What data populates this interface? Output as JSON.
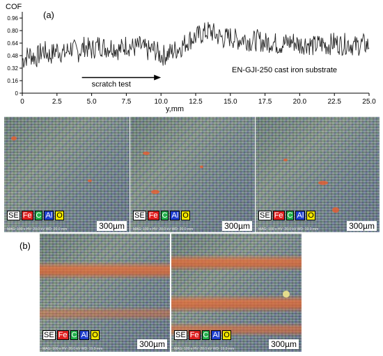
{
  "figure": {
    "panel_a_label": "(a)",
    "panel_b_label": "(b)"
  },
  "chart_data": {
    "type": "line",
    "ylabel": "COF",
    "xlabel": "y,mm",
    "xlim": [
      0,
      25
    ],
    "ylim": [
      0,
      1.04
    ],
    "x_ticks": [
      "0",
      "2.5",
      "5.0",
      "7.5",
      "10.0",
      "12.5",
      "15.0",
      "17.5",
      "20.0",
      "22.5",
      "25.0"
    ],
    "y_ticks": [
      "0",
      "0.16",
      "0.32",
      "0.48",
      "0.64",
      "0.80",
      "0.96"
    ],
    "y_tick_values": [
      0,
      0.16,
      0.32,
      0.48,
      0.64,
      0.8,
      0.96
    ],
    "annotations": {
      "arrow_text": "scratch test",
      "arrow_from_x": 4.3,
      "arrow_to_x": 10.0,
      "arrow_y": 0.2,
      "sample_text": "EN-GJI-250 cast iron substrate"
    },
    "series": [
      {
        "x": [
          0,
          0.5,
          1,
          1.5,
          2,
          2.5,
          3,
          3.5,
          4,
          4.5,
          5,
          5.5,
          6,
          6.5,
          7,
          7.5,
          8,
          8.5,
          9,
          9.5,
          10,
          10.5,
          11,
          11.5,
          12,
          12.5,
          13,
          13.5,
          14,
          14.5,
          15,
          15.5,
          16,
          16.5,
          17,
          17.5,
          18,
          18.5,
          19,
          19.5,
          20,
          20.5,
          21,
          21.5,
          22,
          22.5,
          23,
          23.5,
          24,
          24.5,
          25
        ],
        "y": [
          0.42,
          0.5,
          0.45,
          0.55,
          0.48,
          0.56,
          0.5,
          0.58,
          0.52,
          0.6,
          0.55,
          0.62,
          0.58,
          0.6,
          0.55,
          0.62,
          0.58,
          0.6,
          0.54,
          0.56,
          0.48,
          0.5,
          0.55,
          0.6,
          0.68,
          0.72,
          0.76,
          0.8,
          0.74,
          0.7,
          0.72,
          0.68,
          0.7,
          0.66,
          0.68,
          0.64,
          0.66,
          0.62,
          0.64,
          0.66,
          0.62,
          0.64,
          0.6,
          0.63,
          0.61,
          0.65,
          0.62,
          0.64,
          0.6,
          0.63,
          0.61
        ]
      }
    ]
  },
  "panels": [
    {
      "elements": [
        "SE",
        "Fe",
        "C",
        "Al",
        "O"
      ],
      "meta": "MAG: 100 x  HV: 20.0 kV  WD: 20.0 mm",
      "scale": "300µm"
    },
    {
      "elements": [
        "SE",
        "Fe",
        "C",
        "Al",
        "O"
      ],
      "meta": "MAG: 100 x  HV: 20.0 kV  WD: 20.0 mm",
      "scale": "300µm"
    },
    {
      "elements": [
        "SE",
        "Fe",
        "C",
        "Al",
        "O"
      ],
      "meta": "MAG: 100 x  HV: 20.0 kV  WD: 19.9 mm",
      "scale": "300µm"
    },
    {
      "elements": [
        "SE",
        "Fe",
        "C",
        "Al",
        "O"
      ],
      "meta": "MAG: 100 x  HV: 20.0 kV  WD: 19.9 mm",
      "scale": "300µm"
    },
    {
      "elements": [
        "SE",
        "Fe",
        "C",
        "Al",
        "O"
      ],
      "meta": "MAG: 100 x  HV: 20.0 kV  WD: 19.9 mm",
      "scale": "300µm"
    }
  ],
  "legend_colors": {
    "SE": "#ffffff",
    "Fe": "#e02020",
    "C": "#22b04a",
    "Al": "#1f3fd0",
    "O": "#f2e600"
  },
  "legend_text_colors": {
    "SE": "#000000",
    "Fe": "#ffffff",
    "C": "#ffffff",
    "Al": "#ffffff",
    "O": "#000000"
  }
}
